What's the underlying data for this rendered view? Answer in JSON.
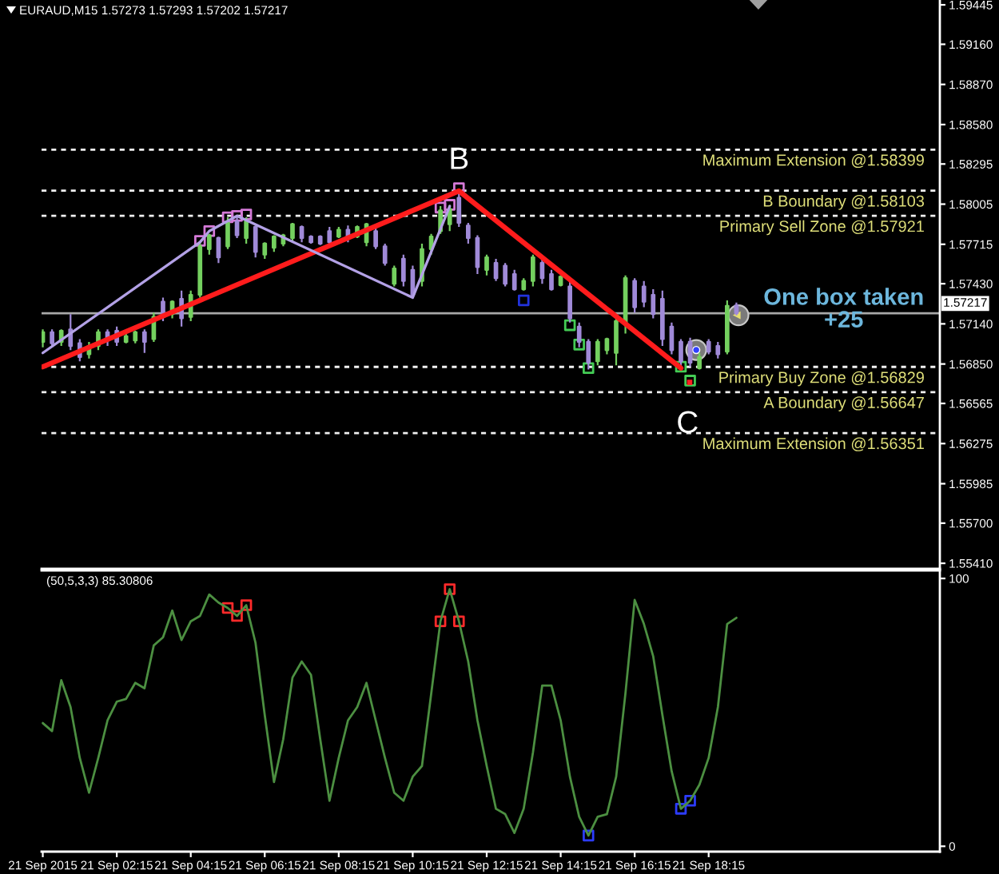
{
  "chart_data": [
    {
      "type": "candlestick",
      "title": "EURAUD,M15 1.57273 1.57293 1.57202 1.57217",
      "x": [
        "2015-09-21T00:15",
        "2015-09-21T00:30",
        "2015-09-21T00:45",
        "2015-09-21T01:00",
        "2015-09-21T01:15",
        "2015-09-21T01:30",
        "2015-09-21T01:45",
        "2015-09-21T02:00",
        "2015-09-21T02:15",
        "2015-09-21T02:30",
        "2015-09-21T02:45",
        "2015-09-21T03:00",
        "2015-09-21T03:15",
        "2015-09-21T03:30",
        "2015-09-21T03:45",
        "2015-09-21T04:00",
        "2015-09-21T04:15",
        "2015-09-21T04:30",
        "2015-09-21T04:45",
        "2015-09-21T05:00",
        "2015-09-21T05:15",
        "2015-09-21T05:30",
        "2015-09-21T05:45",
        "2015-09-21T06:00",
        "2015-09-21T06:15",
        "2015-09-21T06:30",
        "2015-09-21T06:45",
        "2015-09-21T07:00",
        "2015-09-21T07:15",
        "2015-09-21T07:30",
        "2015-09-21T07:45",
        "2015-09-21T08:00",
        "2015-09-21T08:15",
        "2015-09-21T08:30",
        "2015-09-21T08:45",
        "2015-09-21T09:00",
        "2015-09-21T09:15",
        "2015-09-21T09:30",
        "2015-09-21T09:45",
        "2015-09-21T10:00",
        "2015-09-21T10:15",
        "2015-09-21T10:30",
        "2015-09-21T10:45",
        "2015-09-21T11:00",
        "2015-09-21T11:15",
        "2015-09-21T11:30",
        "2015-09-21T11:45",
        "2015-09-21T12:00",
        "2015-09-21T12:15",
        "2015-09-21T12:30",
        "2015-09-21T12:45",
        "2015-09-21T13:00",
        "2015-09-21T13:15",
        "2015-09-21T13:30",
        "2015-09-21T13:45",
        "2015-09-21T14:00",
        "2015-09-21T14:15",
        "2015-09-21T14:30",
        "2015-09-21T14:45",
        "2015-09-21T15:00",
        "2015-09-21T15:15",
        "2015-09-21T15:30",
        "2015-09-21T15:45",
        "2015-09-21T16:00",
        "2015-09-21T16:15",
        "2015-09-21T16:30",
        "2015-09-21T16:45",
        "2015-09-21T17:00",
        "2015-09-21T17:15",
        "2015-09-21T17:30",
        "2015-09-21T17:45",
        "2015-09-21T18:00",
        "2015-09-21T18:15",
        "2015-09-21T18:30",
        "2015-09-21T18:45",
        "2015-09-21T19:00"
      ],
      "ohlc": [
        [
          1.5701,
          1.571,
          1.5697,
          1.5708
        ],
        [
          1.5708,
          1.571,
          1.5697,
          1.57
        ],
        [
          1.5701,
          1.571,
          1.5698,
          1.5709
        ],
        [
          1.571,
          1.5721,
          1.5695,
          1.5698
        ],
        [
          1.57,
          1.5703,
          1.5687,
          1.569
        ],
        [
          1.5692,
          1.5701,
          1.5689,
          1.5698
        ],
        [
          1.5698,
          1.571,
          1.5695,
          1.5708
        ],
        [
          1.5708,
          1.571,
          1.5698,
          1.5702
        ],
        [
          1.5709,
          1.5712,
          1.5698,
          1.5701
        ],
        [
          1.5701,
          1.5707,
          1.57,
          1.5705
        ],
        [
          1.5702,
          1.5709,
          1.57,
          1.5708
        ],
        [
          1.5708,
          1.571,
          1.5693,
          1.5701
        ],
        [
          1.5703,
          1.5722,
          1.5701,
          1.5719
        ],
        [
          1.573,
          1.5733,
          1.5716,
          1.5719
        ],
        [
          1.5721,
          1.5731,
          1.5718,
          1.573
        ],
        [
          1.5732,
          1.5738,
          1.5712,
          1.5718
        ],
        [
          1.5719,
          1.5738,
          1.5716,
          1.5735
        ],
        [
          1.5735,
          1.5773,
          1.5733,
          1.577
        ],
        [
          1.5768,
          1.5779,
          1.5764,
          1.5778
        ],
        [
          1.5776,
          1.5777,
          1.5758,
          1.5762
        ],
        [
          1.577,
          1.5791,
          1.5768,
          1.5787
        ],
        [
          1.5788,
          1.5791,
          1.5776,
          1.5778
        ],
        [
          1.5776,
          1.5791,
          1.5772,
          1.5788
        ],
        [
          1.5784,
          1.5785,
          1.5762,
          1.5766
        ],
        [
          1.5764,
          1.5773,
          1.5761,
          1.5772
        ],
        [
          1.5769,
          1.5778,
          1.5766,
          1.5777
        ],
        [
          1.5772,
          1.5779,
          1.577,
          1.5778
        ],
        [
          1.5776,
          1.5787,
          1.5773,
          1.5786
        ],
        [
          1.5784,
          1.5785,
          1.5773,
          1.5776
        ],
        [
          1.5777,
          1.5778,
          1.5772,
          1.5773
        ],
        [
          1.5777,
          1.5778,
          1.5771,
          1.5772
        ],
        [
          1.5781,
          1.5784,
          1.5772,
          1.5773
        ],
        [
          1.5777,
          1.5784,
          1.5776,
          1.5782
        ],
        [
          1.5782,
          1.5785,
          1.5773,
          1.5776
        ],
        [
          1.5777,
          1.5785,
          1.5776,
          1.5784
        ],
        [
          1.5773,
          1.5787,
          1.577,
          1.5786
        ],
        [
          1.5781,
          1.5784,
          1.5768,
          1.577
        ],
        [
          1.577,
          1.5772,
          1.5756,
          1.5758
        ],
        [
          1.5743,
          1.5756,
          1.5741,
          1.5754
        ],
        [
          1.5761,
          1.5764,
          1.5741,
          1.5745
        ],
        [
          1.5753,
          1.5756,
          1.5733,
          1.5735
        ],
        [
          1.5745,
          1.5772,
          1.5741,
          1.5768
        ],
        [
          1.5768,
          1.5779,
          1.5764,
          1.5777
        ],
        [
          1.5781,
          1.5799,
          1.5779,
          1.5796
        ],
        [
          1.5786,
          1.58,
          1.5781,
          1.5797
        ],
        [
          1.5805,
          1.581,
          1.5784,
          1.5787
        ],
        [
          1.5785,
          1.5787,
          1.5772,
          1.5776
        ],
        [
          1.5776,
          1.5778,
          1.575,
          1.5755
        ],
        [
          1.5753,
          1.5764,
          1.5749,
          1.5762
        ],
        [
          1.5758,
          1.5761,
          1.5745,
          1.5747
        ],
        [
          1.5756,
          1.5758,
          1.5741,
          1.5743
        ],
        [
          1.575,
          1.5753,
          1.5738,
          1.5739
        ],
        [
          1.5739,
          1.5747,
          1.5738,
          1.5745
        ],
        [
          1.5745,
          1.5764,
          1.5741,
          1.5762
        ],
        [
          1.5758,
          1.5761,
          1.5743,
          1.5747
        ],
        [
          1.575,
          1.5753,
          1.5738,
          1.5739
        ],
        [
          1.5742,
          1.5749,
          1.5741,
          1.5748
        ],
        [
          1.5741,
          1.5745,
          1.5715,
          1.5718
        ],
        [
          1.5712,
          1.5715,
          1.5697,
          1.5701
        ],
        [
          1.5701,
          1.5703,
          1.5681,
          1.5686
        ],
        [
          1.5687,
          1.5703,
          1.5684,
          1.5701
        ],
        [
          1.5695,
          1.5704,
          1.5692,
          1.5703
        ],
        [
          1.5693,
          1.5718,
          1.5684,
          1.5716
        ],
        [
          1.5715,
          1.5749,
          1.5707,
          1.5747
        ],
        [
          1.5745,
          1.5747,
          1.5722,
          1.5726
        ],
        [
          1.5741,
          1.5745,
          1.5726,
          1.573
        ],
        [
          1.5735,
          1.5739,
          1.5718,
          1.5721
        ],
        [
          1.5732,
          1.5738,
          1.5698,
          1.5703
        ],
        [
          1.5712,
          1.5715,
          1.5692,
          1.5695
        ],
        [
          1.5701,
          1.5703,
          1.5682,
          1.5687
        ],
        [
          1.5701,
          1.5704,
          1.5683,
          1.5686
        ],
        [
          1.5682,
          1.5693,
          1.5681,
          1.569
        ],
        [
          1.5701,
          1.5703,
          1.5692,
          1.5694
        ],
        [
          1.5698,
          1.5701,
          1.5689,
          1.5692
        ],
        [
          1.5694,
          1.5731,
          1.5692,
          1.5727
        ],
        [
          1.57273,
          1.57293,
          1.57202,
          1.57217
        ]
      ],
      "colors": [
        "#74d05f",
        "#a08ad8",
        "#74d05f",
        "#a08ad8",
        "#a08ad8",
        "#74d05f",
        "#74d05f",
        "#a08ad8",
        "#a08ad8",
        "#74d05f",
        "#74d05f",
        "#a08ad8",
        "#74d05f",
        "#a08ad8",
        "#74d05f",
        "#a08ad8",
        "#74d05f",
        "#74d05f",
        "#74d05f",
        "#a08ad8",
        "#74d05f",
        "#a08ad8",
        "#74d05f",
        "#a08ad8",
        "#74d05f",
        "#74d05f",
        "#74d05f",
        "#74d05f",
        "#a08ad8",
        "#a08ad8",
        "#a08ad8",
        "#a08ad8",
        "#74d05f",
        "#a08ad8",
        "#74d05f",
        "#74d05f",
        "#a08ad8",
        "#a08ad8",
        "#74d05f",
        "#a08ad8",
        "#a08ad8",
        "#74d05f",
        "#74d05f",
        "#74d05f",
        "#74d05f",
        "#a08ad8",
        "#a08ad8",
        "#a08ad8",
        "#74d05f",
        "#a08ad8",
        "#a08ad8",
        "#a08ad8",
        "#74d05f",
        "#74d05f",
        "#a08ad8",
        "#a08ad8",
        "#74d05f",
        "#a08ad8",
        "#a08ad8",
        "#a08ad8",
        "#74d05f",
        "#74d05f",
        "#74d05f",
        "#74d05f",
        "#a08ad8",
        "#a08ad8",
        "#a08ad8",
        "#a08ad8",
        "#a08ad8",
        "#a08ad8",
        "#a08ad8",
        "#74d05f",
        "#a08ad8",
        "#a08ad8",
        "#74d05f",
        "#a08ad8"
      ],
      "series": [
        {
          "type": "line",
          "color": "#ff1c1c",
          "x": [
            "2015-09-21T00:15",
            "2015-09-21T11:30",
            "2015-09-21T17:30"
          ],
          "values": [
            1.5683,
            1.581,
            1.5682
          ]
        },
        {
          "type": "line",
          "color": "#b3a1e6",
          "x": [
            "2015-09-21T00:15",
            "2015-09-21T04:30",
            "2015-09-21T04:45",
            "2015-09-21T05:30",
            "2015-09-21T10:15",
            "2015-09-21T11:15"
          ],
          "values": [
            1.5693,
            1.5773,
            1.5781,
            1.5792,
            1.5733,
            1.5799
          ]
        },
        {
          "type": "scatter",
          "marker": "square",
          "color": "#d57ad8",
          "x": [
            "2015-09-21T04:30",
            "2015-09-21T04:45",
            "2015-09-21T05:15",
            "2015-09-21T05:30",
            "2015-09-21T05:45",
            "2015-09-21T11:00",
            "2015-09-21T11:15",
            "2015-09-21T11:30"
          ],
          "values": [
            1.5774,
            1.5781,
            1.5791,
            1.5792,
            1.5793,
            1.5798,
            1.58,
            1.5812
          ]
        },
        {
          "type": "scatter",
          "marker": "square",
          "color": "#44cc55",
          "x": [
            "2015-09-21T14:30",
            "2015-09-21T14:45",
            "2015-09-21T15:00",
            "2015-09-21T17:30",
            "2015-09-21T17:45"
          ],
          "values": [
            1.5713,
            1.5699,
            1.5682,
            1.5683,
            1.5673
          ]
        },
        {
          "type": "scatter",
          "marker": "square",
          "color": "#2233dd",
          "x": [
            "2015-09-21T13:15"
          ],
          "values": [
            1.5731
          ]
        }
      ],
      "ref_lines": [
        {
          "axis": "y",
          "value": 1.58399,
          "label": "Maximum Extension @1.58399",
          "color": "#f0f0f0",
          "line_style": "dashed"
        },
        {
          "axis": "y",
          "value": 1.58103,
          "label": "B Boundary @1.58103",
          "color": "#f0f0f0",
          "line_style": "dashed"
        },
        {
          "axis": "y",
          "value": 1.57921,
          "label": "Primary Sell Zone @1.57921",
          "color": "#f0f0f0",
          "line_style": "dashed"
        },
        {
          "axis": "y",
          "value": 1.56829,
          "label": "Primary Buy Zone @1.56829",
          "color": "#f0f0f0",
          "line_style": "dashed"
        },
        {
          "axis": "y",
          "value": 1.56647,
          "label": "A Boundary @1.56647",
          "color": "#f0f0f0",
          "line_style": "dashed"
        },
        {
          "axis": "y",
          "value": 1.56351,
          "label": "Maximum Extension @1.56351",
          "color": "#f0f0f0",
          "line_style": "dashed"
        },
        {
          "axis": "y",
          "value": 1.57217,
          "label": "1.57217",
          "color": "#a9a9a9",
          "line_style": "solid"
        }
      ],
      "annotations": [
        {
          "text": "B",
          "x": "2015-09-21T11:30",
          "y": 1.581
        },
        {
          "text": "C",
          "x": "2015-09-21T17:30",
          "y": 1.5682
        },
        "One box taken\n+25"
      ],
      "xlim": [
        "2015-09-21T00:13",
        "2015-09-22T00:30"
      ],
      "ylim": [
        1.5537,
        1.5948
      ],
      "yticks": [
        {
          "value": 1.5541,
          "label": "1.55410"
        },
        {
          "value": 1.557,
          "label": "1.55700"
        },
        {
          "value": 1.55985,
          "label": "1.55985"
        },
        {
          "value": 1.56275,
          "label": "1.56275"
        },
        {
          "value": 1.56565,
          "label": "1.56565"
        },
        {
          "value": 1.5685,
          "label": "1.56850"
        },
        {
          "value": 1.5714,
          "label": "1.57140"
        },
        {
          "value": 1.5743,
          "label": "1.57430"
        },
        {
          "value": 1.57715,
          "label": "1.57715"
        },
        {
          "value": 1.58005,
          "label": "1.58005"
        },
        {
          "value": 1.58295,
          "label": "1.58295"
        },
        {
          "value": 1.5858,
          "label": "1.58580"
        },
        {
          "value": 1.5887,
          "label": "1.58870"
        },
        {
          "value": 1.5916,
          "label": "1.59160"
        },
        {
          "value": 1.59445,
          "label": "1.59445"
        }
      ],
      "tick_labels": "y"
    },
    {
      "type": "line",
      "title": "(50,5,3,3) 85.30806",
      "x": [
        "2015-09-21T00:15",
        "2015-09-21T00:30",
        "2015-09-21T00:45",
        "2015-09-21T01:00",
        "2015-09-21T01:15",
        "2015-09-21T01:30",
        "2015-09-21T01:45",
        "2015-09-21T02:00",
        "2015-09-21T02:15",
        "2015-09-21T02:30",
        "2015-09-21T02:45",
        "2015-09-21T03:00",
        "2015-09-21T03:15",
        "2015-09-21T03:30",
        "2015-09-21T03:45",
        "2015-09-21T04:00",
        "2015-09-21T04:15",
        "2015-09-21T04:30",
        "2015-09-21T04:45",
        "2015-09-21T05:00",
        "2015-09-21T05:15",
        "2015-09-21T05:30",
        "2015-09-21T05:45",
        "2015-09-21T06:00",
        "2015-09-21T06:15",
        "2015-09-21T06:30",
        "2015-09-21T06:45",
        "2015-09-21T07:00",
        "2015-09-21T07:15",
        "2015-09-21T07:30",
        "2015-09-21T07:45",
        "2015-09-21T08:00",
        "2015-09-21T08:15",
        "2015-09-21T08:30",
        "2015-09-21T08:45",
        "2015-09-21T09:00",
        "2015-09-21T09:15",
        "2015-09-21T09:30",
        "2015-09-21T09:45",
        "2015-09-21T10:00",
        "2015-09-21T10:15",
        "2015-09-21T10:30",
        "2015-09-21T10:45",
        "2015-09-21T11:00",
        "2015-09-21T11:15",
        "2015-09-21T11:30",
        "2015-09-21T11:45",
        "2015-09-21T12:00",
        "2015-09-21T12:15",
        "2015-09-21T12:30",
        "2015-09-21T12:45",
        "2015-09-21T13:00",
        "2015-09-21T13:15",
        "2015-09-21T13:30",
        "2015-09-21T13:45",
        "2015-09-21T14:00",
        "2015-09-21T14:15",
        "2015-09-21T14:30",
        "2015-09-21T14:45",
        "2015-09-21T15:00",
        "2015-09-21T15:15",
        "2015-09-21T15:30",
        "2015-09-21T15:45",
        "2015-09-21T16:00",
        "2015-09-21T16:15",
        "2015-09-21T16:30",
        "2015-09-21T16:45",
        "2015-09-21T17:00",
        "2015-09-21T17:15",
        "2015-09-21T17:30",
        "2015-09-21T17:45",
        "2015-09-21T18:00",
        "2015-09-21T18:15",
        "2015-09-21T18:30",
        "2015-09-21T18:45",
        "2015-09-21T19:00"
      ],
      "series": [
        {
          "color": "#4c8f41",
          "values": [
            46,
            43,
            62,
            52,
            33,
            20,
            33,
            47,
            54,
            55,
            61,
            59,
            75,
            78,
            88,
            77,
            84,
            86,
            94,
            91,
            89,
            86,
            90,
            76,
            49,
            24,
            40,
            63,
            69,
            64,
            40,
            17,
            33,
            47,
            52,
            61,
            47,
            33,
            20,
            17,
            26,
            30,
            57,
            84,
            96,
            84,
            69,
            47,
            30,
            14,
            12,
            5,
            14,
            35,
            60,
            60,
            47,
            26,
            11,
            4,
            11,
            12,
            26,
            57,
            92,
            83,
            71,
            49,
            28,
            14,
            17,
            23,
            33,
            52,
            83,
            85.3
          ]
        },
        {
          "type": "scatter",
          "marker": "square",
          "color": "#ff2a2a",
          "x": [
            "2015-09-21T05:15",
            "2015-09-21T05:30",
            "2015-09-21T05:45",
            "2015-09-21T11:00",
            "2015-09-21T11:15",
            "2015-09-21T11:30"
          ],
          "values": [
            89,
            86,
            90,
            84,
            96,
            84
          ]
        },
        {
          "type": "scatter",
          "marker": "square",
          "color": "#2c3cff",
          "x": [
            "2015-09-21T15:00",
            "2015-09-21T17:30",
            "2015-09-21T17:45"
          ],
          "values": [
            4,
            14,
            17
          ]
        }
      ],
      "xlim": [
        "2015-09-21T00:13",
        "2015-09-22T00:30"
      ],
      "xticks": [
        {
          "value": "2015-09-21T00:15",
          "label": "21 Sep 2015"
        },
        {
          "value": "2015-09-21T02:15",
          "label": "21 Sep 02:15"
        },
        {
          "value": "2015-09-21T04:15",
          "label": "21 Sep 04:15"
        },
        {
          "value": "2015-09-21T06:15",
          "label": "21 Sep 06:15"
        },
        {
          "value": "2015-09-21T08:15",
          "label": "21 Sep 08:15"
        },
        {
          "value": "2015-09-21T10:15",
          "label": "21 Sep 10:15"
        },
        {
          "value": "2015-09-21T12:15",
          "label": "21 Sep 12:15"
        },
        {
          "value": "2015-09-21T14:15",
          "label": "21 Sep 14:15"
        },
        {
          "value": "2015-09-21T16:15",
          "label": "21 Sep 16:15"
        },
        {
          "value": "2015-09-21T18:15",
          "label": "21 Sep 18:15"
        }
      ],
      "ylim": [
        -2,
        103
      ],
      "yticks": [
        0,
        100
      ]
    }
  ]
}
